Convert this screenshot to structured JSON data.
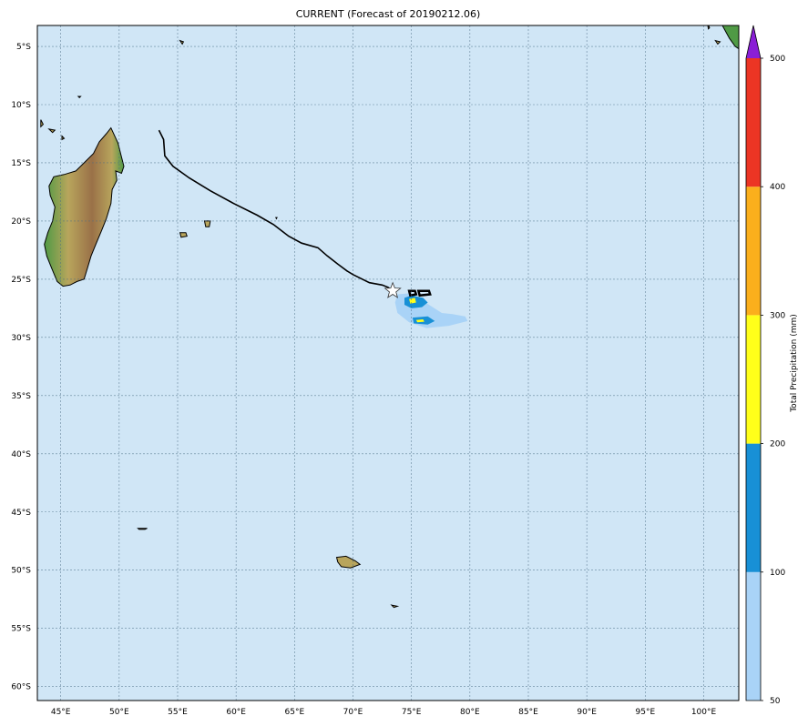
{
  "title": "CURRENT (Forecast of 20190212.06)",
  "map": {
    "lon_range": [
      43,
      103
    ],
    "lat_range": [
      -61.2,
      -3.2
    ],
    "grid": true,
    "ocean_color": "#d0e6f6",
    "grid_color": "#4a6d85",
    "lon_ticks": [
      {
        "value": 45,
        "label": "45°E"
      },
      {
        "value": 50,
        "label": "50°E"
      },
      {
        "value": 55,
        "label": "55°E"
      },
      {
        "value": 60,
        "label": "60°E"
      },
      {
        "value": 65,
        "label": "65°E"
      },
      {
        "value": 70,
        "label": "70°E"
      },
      {
        "value": 75,
        "label": "75°E"
      },
      {
        "value": 80,
        "label": "80°E"
      },
      {
        "value": 85,
        "label": "85°E"
      },
      {
        "value": 90,
        "label": "90°E"
      },
      {
        "value": 95,
        "label": "95°E"
      },
      {
        "value": 100,
        "label": "100°E"
      }
    ],
    "lat_ticks": [
      {
        "value": -5,
        "label": "5°S"
      },
      {
        "value": -10,
        "label": "10°S"
      },
      {
        "value": -15,
        "label": "15°S"
      },
      {
        "value": -20,
        "label": "20°S"
      },
      {
        "value": -25,
        "label": "25°S"
      },
      {
        "value": -30,
        "label": "30°S"
      },
      {
        "value": -35,
        "label": "35°S"
      },
      {
        "value": -40,
        "label": "40°S"
      },
      {
        "value": -45,
        "label": "45°S"
      },
      {
        "value": -50,
        "label": "50°S"
      },
      {
        "value": -55,
        "label": "55°S"
      },
      {
        "value": -60,
        "label": "60°S"
      }
    ],
    "track": [
      [
        53.4,
        -12.2
      ],
      [
        53.8,
        -13.0
      ],
      [
        53.9,
        -14.4
      ],
      [
        54.6,
        -15.3
      ],
      [
        56.0,
        -16.3
      ],
      [
        57.8,
        -17.4
      ],
      [
        59.8,
        -18.5
      ],
      [
        61.8,
        -19.5
      ],
      [
        63.2,
        -20.3
      ],
      [
        64.5,
        -21.3
      ],
      [
        65.6,
        -21.9
      ],
      [
        67.0,
        -22.3
      ],
      [
        67.8,
        -23.0
      ],
      [
        68.7,
        -23.7
      ],
      [
        69.5,
        -24.3
      ],
      [
        70.0,
        -24.6
      ],
      [
        71.4,
        -25.3
      ],
      [
        72.5,
        -25.5
      ],
      [
        73.0,
        -25.7
      ],
      [
        73.4,
        -26.0
      ]
    ],
    "storm_position": [
      73.4,
      -26.0
    ],
    "precip_areas": [
      {
        "level": 50,
        "points": [
          [
            73.8,
            -26.3
          ],
          [
            75.0,
            -26.2
          ],
          [
            76.5,
            -27.2
          ],
          [
            77.6,
            -27.9
          ],
          [
            78.5,
            -28.0
          ],
          [
            79.6,
            -28.2
          ],
          [
            79.8,
            -28.6
          ],
          [
            78.2,
            -29.0
          ],
          [
            76.3,
            -29.2
          ],
          [
            74.8,
            -28.7
          ],
          [
            73.8,
            -27.9
          ],
          [
            73.6,
            -27.0
          ]
        ]
      },
      {
        "level": 100,
        "points": [
          [
            74.4,
            -26.6
          ],
          [
            75.0,
            -26.4
          ],
          [
            76.0,
            -26.6
          ],
          [
            76.4,
            -27.0
          ],
          [
            75.9,
            -27.4
          ],
          [
            75.0,
            -27.5
          ],
          [
            74.4,
            -27.2
          ]
        ]
      },
      {
        "level": 100,
        "points": [
          [
            75.1,
            -28.3
          ],
          [
            76.4,
            -28.2
          ],
          [
            77.0,
            -28.6
          ],
          [
            76.4,
            -28.9
          ],
          [
            75.2,
            -28.8
          ]
        ]
      },
      {
        "level": 200,
        "points": [
          [
            74.8,
            -26.7
          ],
          [
            75.3,
            -26.6
          ],
          [
            75.4,
            -27.0
          ],
          [
            74.9,
            -27.1
          ]
        ]
      },
      {
        "level": 200,
        "points": [
          [
            75.4,
            -28.5
          ],
          [
            76.0,
            -28.45
          ],
          [
            76.1,
            -28.65
          ],
          [
            75.5,
            -28.7
          ]
        ]
      }
    ],
    "precip_outlines": [
      [
        [
          74.8,
          -26.0
        ],
        [
          75.3,
          -26.0
        ],
        [
          75.4,
          -26.3
        ],
        [
          74.9,
          -26.4
        ]
      ],
      [
        [
          75.6,
          -26.0
        ],
        [
          76.5,
          -26.0
        ],
        [
          76.6,
          -26.3
        ],
        [
          75.7,
          -26.4
        ]
      ]
    ],
    "land_colors": {
      "lowland": "#4f9a45",
      "midland": "#b8a55c",
      "highland": "#9a7148",
      "coast": "#000000"
    },
    "madagascar": [
      [
        49.3,
        -12.0
      ],
      [
        49.9,
        -13.3
      ],
      [
        50.2,
        -14.5
      ],
      [
        50.4,
        -15.3
      ],
      [
        50.2,
        -15.9
      ],
      [
        49.7,
        -15.7
      ],
      [
        49.8,
        -16.5
      ],
      [
        49.4,
        -17.3
      ],
      [
        49.3,
        -18.5
      ],
      [
        48.9,
        -19.8
      ],
      [
        48.5,
        -20.8
      ],
      [
        48.0,
        -22.0
      ],
      [
        47.6,
        -23.0
      ],
      [
        47.3,
        -24.0
      ],
      [
        47.0,
        -25.0
      ],
      [
        46.4,
        -25.2
      ],
      [
        45.8,
        -25.5
      ],
      [
        45.2,
        -25.6
      ],
      [
        44.7,
        -25.2
      ],
      [
        44.2,
        -24.0
      ],
      [
        43.8,
        -23.0
      ],
      [
        43.6,
        -22.0
      ],
      [
        43.9,
        -21.0
      ],
      [
        44.3,
        -20.0
      ],
      [
        44.5,
        -18.8
      ],
      [
        44.1,
        -17.8
      ],
      [
        44.0,
        -17.0
      ],
      [
        44.4,
        -16.2
      ],
      [
        45.3,
        -16.0
      ],
      [
        46.3,
        -15.7
      ],
      [
        47.0,
        -15.0
      ],
      [
        47.8,
        -14.2
      ],
      [
        48.3,
        -13.2
      ],
      [
        48.9,
        -12.5
      ]
    ],
    "islands": [
      [
        [
          55.2,
          -21.0
        ],
        [
          55.7,
          -21.0
        ],
        [
          55.8,
          -21.3
        ],
        [
          55.3,
          -21.4
        ]
      ],
      [
        [
          57.3,
          -20.0
        ],
        [
          57.8,
          -20.0
        ],
        [
          57.7,
          -20.5
        ],
        [
          57.4,
          -20.5
        ]
      ],
      [
        [
          68.6,
          -48.9
        ],
        [
          69.4,
          -48.8
        ],
        [
          70.2,
          -49.2
        ],
        [
          70.6,
          -49.5
        ],
        [
          69.8,
          -49.8
        ],
        [
          69.0,
          -49.7
        ],
        [
          68.7,
          -49.3
        ]
      ],
      [
        [
          73.3,
          -53.0
        ],
        [
          73.8,
          -53.1
        ],
        [
          73.5,
          -53.2
        ]
      ],
      [
        [
          51.6,
          -46.4
        ],
        [
          52.4,
          -46.4
        ],
        [
          52.2,
          -46.5
        ],
        [
          51.7,
          -46.5
        ]
      ],
      [
        [
          55.2,
          -4.5
        ],
        [
          55.5,
          -4.6
        ],
        [
          55.4,
          -4.8
        ]
      ],
      [
        [
          43.3,
          -11.3
        ],
        [
          43.5,
          -11.7
        ],
        [
          43.3,
          -11.9
        ]
      ],
      [
        [
          44.0,
          -12.1
        ],
        [
          44.5,
          -12.2
        ],
        [
          44.3,
          -12.4
        ]
      ],
      [
        [
          45.1,
          -12.7
        ],
        [
          45.3,
          -12.9
        ],
        [
          45.1,
          -13.0
        ]
      ],
      [
        [
          46.5,
          -9.3
        ],
        [
          46.7,
          -9.3
        ],
        [
          46.6,
          -9.4
        ]
      ],
      [
        [
          63.4,
          -19.7
        ],
        [
          63.5,
          -19.7
        ],
        [
          63.45,
          -19.8
        ]
      ],
      [
        [
          100.3,
          -2.9
        ],
        [
          100.5,
          -3.4
        ],
        [
          100.4,
          -3.5
        ]
      ],
      [
        [
          101.0,
          -4.5
        ],
        [
          101.4,
          -4.6
        ],
        [
          101.2,
          -4.8
        ]
      ]
    ],
    "sumatra": [
      [
        101.6,
        -3.2
      ],
      [
        103.0,
        -3.2
      ],
      [
        103.0,
        -5.2
      ],
      [
        102.7,
        -5.0
      ],
      [
        102.2,
        -4.3
      ]
    ]
  },
  "colorbar": {
    "label": "Total Precipitation (mm)",
    "bins": [
      {
        "from": 50,
        "to": 100,
        "color": "#a9d3f7",
        "label": "50"
      },
      {
        "from": 100,
        "to": 200,
        "color": "#1890d6",
        "label": "100"
      },
      {
        "from": 200,
        "to": 300,
        "color": "#ffff1a",
        "label": "200"
      },
      {
        "from": 300,
        "to": 400,
        "color": "#fbaf1c",
        "label": "300"
      },
      {
        "from": 400,
        "to": 500,
        "color": "#ec3524",
        "label": "400"
      }
    ],
    "top_label": "500",
    "extend_color": "#8a1fd6"
  }
}
